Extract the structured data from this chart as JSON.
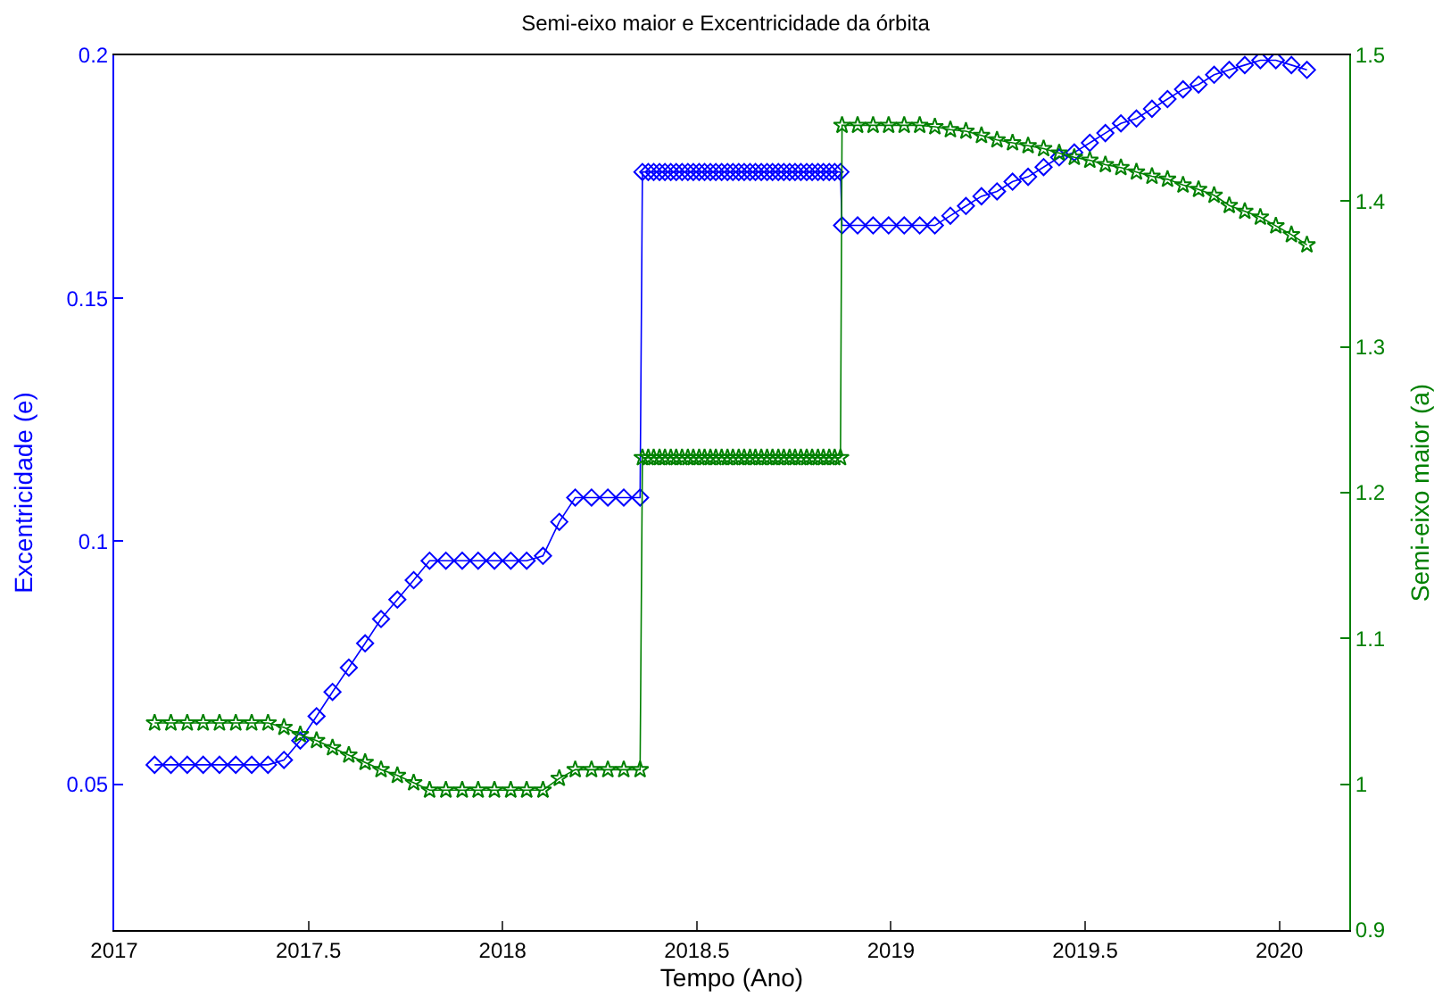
{
  "chart_data": {
    "type": "line",
    "title": "Semi-eixo maior e Excentricidade da órbita",
    "xlabel": "Tempo (Ano)",
    "ylabel": "Excentricidade (e)",
    "y2label": "Semi-eixo maior (a)",
    "xlim": [
      2017,
      2020.18
    ],
    "xticks": [
      2017,
      2017.5,
      2018,
      2018.5,
      2019,
      2019.5,
      2020
    ],
    "ylim": [
      0.02,
      0.2
    ],
    "yticks": [
      0.05,
      0.1,
      0.15,
      0.2
    ],
    "y2lim": [
      0.9,
      1.5
    ],
    "y2ticks": [
      0.9,
      1,
      1.1,
      1.2,
      1.3,
      1.4,
      1.5
    ],
    "x": [
      2017.104,
      2017.146,
      2017.188,
      2017.229,
      2017.271,
      2017.313,
      2017.354,
      2017.396,
      2017.437,
      2017.479,
      2017.521,
      2017.562,
      2017.604,
      2017.646,
      2017.687,
      2017.729,
      2017.771,
      2017.812,
      2017.854,
      2017.896,
      2017.937,
      2017.979,
      2018.021,
      2018.062,
      2018.104,
      2018.146,
      2018.187,
      2018.229,
      2018.271,
      2018.312,
      2018.354,
      2018.36,
      2018.375,
      2018.389,
      2018.404,
      2018.418,
      2018.433,
      2018.447,
      2018.462,
      2018.477,
      2018.491,
      2018.506,
      2018.52,
      2018.535,
      2018.549,
      2018.564,
      2018.579,
      2018.593,
      2018.608,
      2018.622,
      2018.637,
      2018.651,
      2018.666,
      2018.681,
      2018.695,
      2018.71,
      2018.724,
      2018.739,
      2018.753,
      2018.768,
      2018.783,
      2018.797,
      2018.812,
      2018.826,
      2018.841,
      2018.855,
      2018.87,
      2018.874,
      2018.914,
      2018.954,
      2018.994,
      2019.034,
      2019.074,
      2019.113,
      2019.153,
      2019.193,
      2019.233,
      2019.273,
      2019.313,
      2019.353,
      2019.393,
      2019.433,
      2019.472,
      2019.512,
      2019.552,
      2019.592,
      2019.632,
      2019.672,
      2019.712,
      2019.752,
      2019.792,
      2019.832,
      2019.871,
      2019.911,
      2019.951,
      2019.991,
      2020.031,
      2020.071
    ],
    "series": [
      {
        "color": "#0000ff",
        "marker": "diamond",
        "axis": "y",
        "values": [
          0.054,
          0.054,
          0.054,
          0.054,
          0.054,
          0.054,
          0.054,
          0.054,
          0.055,
          0.059,
          0.064,
          0.069,
          0.074,
          0.079,
          0.084,
          0.088,
          0.092,
          0.096,
          0.096,
          0.096,
          0.096,
          0.096,
          0.096,
          0.096,
          0.097,
          0.104,
          0.109,
          0.109,
          0.109,
          0.109,
          0.109,
          0.176,
          0.176,
          0.176,
          0.176,
          0.176,
          0.176,
          0.176,
          0.176,
          0.176,
          0.176,
          0.176,
          0.176,
          0.176,
          0.176,
          0.176,
          0.176,
          0.176,
          0.176,
          0.176,
          0.176,
          0.176,
          0.176,
          0.176,
          0.176,
          0.176,
          0.176,
          0.176,
          0.176,
          0.176,
          0.176,
          0.176,
          0.176,
          0.176,
          0.176,
          0.176,
          0.176,
          0.165,
          0.165,
          0.165,
          0.165,
          0.165,
          0.165,
          0.165,
          0.167,
          0.169,
          0.171,
          0.172,
          0.174,
          0.175,
          0.177,
          0.179,
          0.18,
          0.182,
          0.184,
          0.186,
          0.187,
          0.189,
          0.191,
          0.193,
          0.194,
          0.196,
          0.197,
          0.198,
          0.199,
          0.199,
          0.198,
          0.197
        ]
      },
      {
        "color": "#008000",
        "marker": "star",
        "axis": "y2",
        "values": [
          1.042,
          1.042,
          1.042,
          1.042,
          1.042,
          1.042,
          1.042,
          1.042,
          1.039,
          1.034,
          1.03,
          1.025,
          1.02,
          1.015,
          1.01,
          1.006,
          1.001,
          0.996,
          0.996,
          0.996,
          0.996,
          0.996,
          0.996,
          0.996,
          0.996,
          1.004,
          1.01,
          1.01,
          1.01,
          1.01,
          1.01,
          1.224,
          1.224,
          1.224,
          1.224,
          1.224,
          1.224,
          1.224,
          1.224,
          1.224,
          1.224,
          1.224,
          1.224,
          1.224,
          1.224,
          1.224,
          1.224,
          1.224,
          1.224,
          1.224,
          1.224,
          1.224,
          1.224,
          1.224,
          1.224,
          1.224,
          1.224,
          1.224,
          1.224,
          1.224,
          1.224,
          1.224,
          1.224,
          1.224,
          1.224,
          1.224,
          1.224,
          1.452,
          1.452,
          1.452,
          1.452,
          1.452,
          1.452,
          1.451,
          1.449,
          1.448,
          1.445,
          1.442,
          1.44,
          1.438,
          1.436,
          1.433,
          1.43,
          1.428,
          1.425,
          1.423,
          1.42,
          1.417,
          1.415,
          1.411,
          1.408,
          1.404,
          1.397,
          1.393,
          1.389,
          1.383,
          1.377,
          1.37
        ]
      }
    ]
  }
}
